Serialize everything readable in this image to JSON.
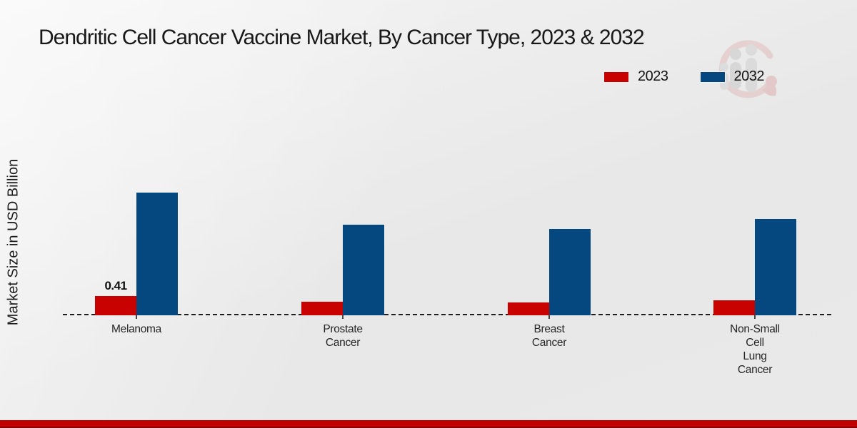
{
  "page": {
    "title": "Dendritic Cell Cancer Vaccine Market, By Cancer Type, 2023 & 2032"
  },
  "legend": {
    "items": [
      {
        "label": "2023",
        "color": "#c80101"
      },
      {
        "label": "2032",
        "color": "#05477f"
      }
    ]
  },
  "chart_data": {
    "type": "bar",
    "title": "Dendritic Cell Cancer Vaccine Market, By Cancer Type, 2023 & 2032",
    "xlabel": "",
    "ylabel": "Market Size in USD Billion",
    "categories": [
      "Melanoma",
      "Prostate\nCancer",
      "Breast\nCancer",
      "Non-Small\nCell\nLung\nCancer"
    ],
    "series": [
      {
        "name": "2023",
        "color": "#c80101",
        "values": [
          0.41,
          0.29,
          0.28,
          0.32
        ],
        "value_labels": [
          "0.41",
          "",
          "",
          ""
        ]
      },
      {
        "name": "2032",
        "color": "#05477f",
        "values": [
          2.61,
          1.93,
          1.84,
          2.05
        ],
        "value_labels": [
          "",
          "",
          "",
          ""
        ]
      }
    ],
    "ylim": [
      0,
      3
    ],
    "grid": false,
    "axis_line": "dashed-baseline-only",
    "legend_position": "top-right"
  },
  "footer": {
    "band_color": "#c00101"
  }
}
